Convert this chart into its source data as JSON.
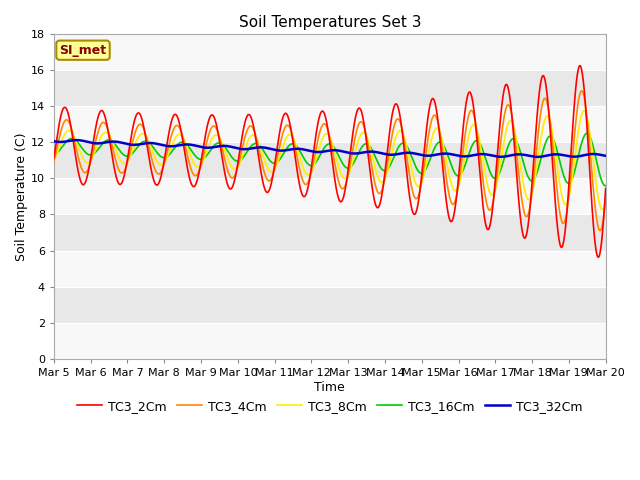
{
  "title": "Soil Temperatures Set 3",
  "xlabel": "Time",
  "ylabel": "Soil Temperature (C)",
  "xlim": [
    0,
    15
  ],
  "ylim": [
    0,
    18
  ],
  "yticks": [
    0,
    2,
    4,
    6,
    8,
    10,
    12,
    14,
    16,
    18
  ],
  "xtick_labels": [
    "Mar 5",
    "Mar 6",
    "Mar 7",
    "Mar 8",
    "Mar 9",
    "Mar 10",
    "Mar 11",
    "Mar 12",
    "Mar 13",
    "Mar 14",
    "Mar 15",
    "Mar 16",
    "Mar 17",
    "Mar 18",
    "Mar 19",
    "Mar 20"
  ],
  "series_colors": [
    "#ff0000",
    "#ff8800",
    "#ffee00",
    "#00cc00",
    "#0000cc"
  ],
  "series_names": [
    "TC3_2Cm",
    "TC3_4Cm",
    "TC3_8Cm",
    "TC3_16Cm",
    "TC3_32Cm"
  ],
  "series_linewidths": [
    1.2,
    1.2,
    1.2,
    1.2,
    1.8
  ],
  "annotation_label": "SI_met",
  "annotation_bg": "#ffff99",
  "annotation_border": "#aa8800",
  "annotation_text_color": "#880000",
  "title_fontsize": 11,
  "axis_fontsize": 9,
  "tick_fontsize": 8,
  "legend_fontsize": 9,
  "fig_bg": "#ffffff",
  "plot_bg": "#e8e8e8",
  "band_color": "#d0d0d0",
  "grid_color": "#c0c0c0"
}
